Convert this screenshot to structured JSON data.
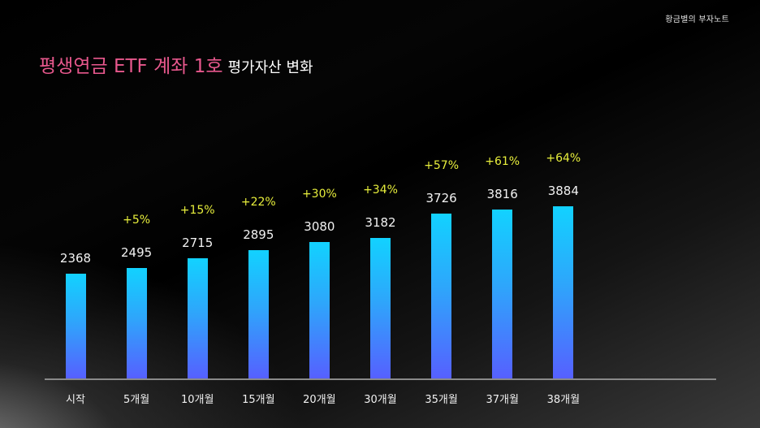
{
  "brand": "황금별의 부자노트",
  "title": {
    "main": "평생연금 ETF 계좌 1호",
    "sub": "평가자산 변화"
  },
  "colors": {
    "title_accent": "#e8588d",
    "growth_label": "#e8ef3c",
    "bar_top": "#12d2ff",
    "bar_bottom": "#5660ff",
    "baseline": "#8a8a8a"
  },
  "chart_data": {
    "type": "bar",
    "title": "평생연금 ETF 계좌 1호 평가자산 변화",
    "xlabel": "",
    "ylabel": "",
    "categories": [
      "시작",
      "5개월",
      "10개월",
      "15개월",
      "20개월",
      "30개월",
      "35개월",
      "37개월",
      "38개월"
    ],
    "values": [
      2368,
      2495,
      2715,
      2895,
      3080,
      3182,
      3726,
      3816,
      3884
    ],
    "value_labels": [
      "2368",
      "2495",
      "2715",
      "2895",
      "3080",
      "3182",
      "3726",
      "3816",
      "3884"
    ],
    "growth_labels": [
      "",
      "+5%",
      "+15%",
      "+22%",
      "+30%",
      "+34%",
      "+57%",
      "+61%",
      "+64%"
    ],
    "grid": false,
    "legend": null,
    "ylim": [
      0,
      4000
    ]
  }
}
